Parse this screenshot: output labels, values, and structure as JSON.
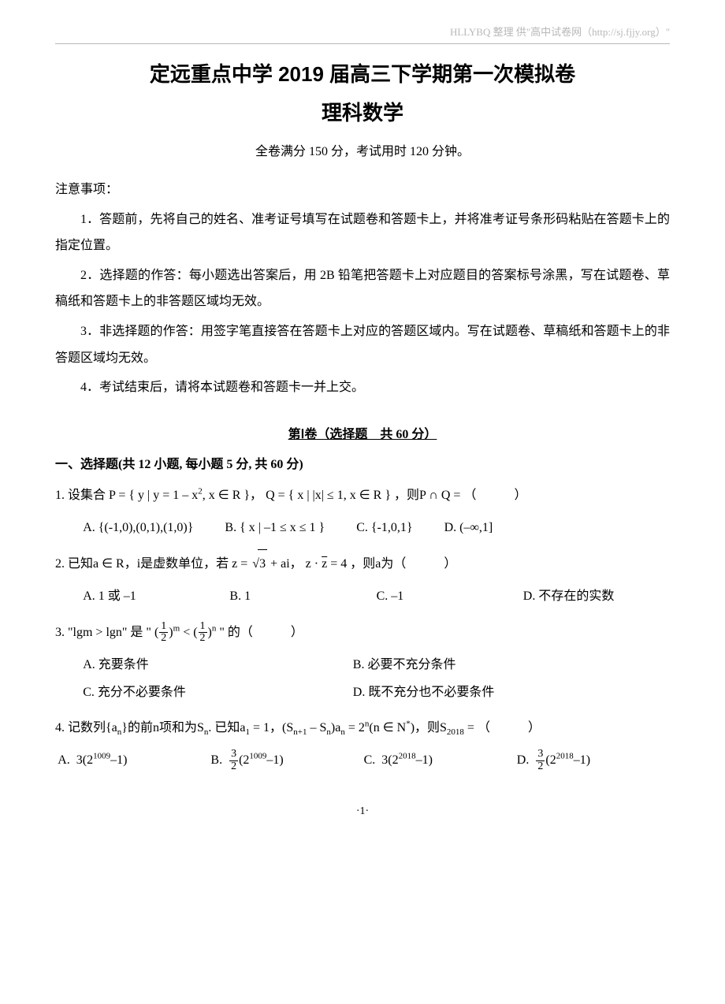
{
  "header": {
    "text": "HLLYBQ 整理    供\"高中试卷网（http://sj.fjjy.org）\""
  },
  "title": "定远重点中学 2019 届高三下学期第一次模拟卷",
  "subtitle": "理科数学",
  "info": "全卷满分 150 分，考试用时 120 分钟。",
  "notice_label": "注意事项：",
  "notices": [
    "1．答题前，先将自己的姓名、准考证号填写在试题卷和答题卡上，并将准考证号条形码粘贴在答题卡上的指定位置。",
    "2．选择题的作答：每小题选出答案后，用 2B 铅笔把答题卡上对应题目的答案标号涂黑，写在试题卷、草稿纸和答题卡上的非答题区域均无效。",
    "3．非选择题的作答：用签字笔直接答在答题卡上对应的答题区域内。写在试题卷、草稿纸和答题卡上的非答题区域均无效。",
    "4．考试结束后，请将本试题卷和答题卡一并上交。"
  ],
  "part1_head": "第Ⅰ卷（选择题　共 60 分）",
  "part1_sub": "一、选择题(共 12 小题, 每小题 5 分, 共 60 分)",
  "q1": {
    "stem_pre": "1. 设集合",
    "p_def": "P = { y | y = 1 – x²,  x ∈ R }",
    "q_def": "Q = { x | |x| ≤ 1,  x ∈ R }",
    "stem_post": "，则 P ∩ Q = （　　）",
    "a": "A.  {(-1,0),(0,1),(1,0)}",
    "b": "B.  { x | –1 ≤ x ≤ 1 }",
    "c": "C.  {-1,0,1}",
    "d": "D.  (–∞,1]"
  },
  "q2": {
    "stem": "2. 已知 a ∈ R，i 是虚数单位，若 ",
    "zexpr": "z = √3 + ai",
    "zzbar": "z · z̄ = 4",
    "tail": "，则 a 为（　　）",
    "a": "A.  1 或 –1",
    "b": "B.  1",
    "c": "C.  –1",
    "d": "D.  不存在的实数"
  },
  "q3": {
    "stem_pre": "3. \"lgm > lgn\" 是 \"",
    "ineq_l": "(½)^m",
    "ineq_r": "(½)^n",
    "stem_post": "\" 的（　　）",
    "a": "A.  充要条件",
    "b": "B.  必要不充分条件",
    "c": "C.  充分不必要条件",
    "d": "D.  既不充分也不必要条件"
  },
  "q4": {
    "stem": "4. 记数列{aₙ}的前 n 项和为 Sₙ.  已知 a₁ = 1，(Sₙ₊₁ – Sₙ)aₙ = 2ⁿ (n ∈ N*)，则 S₂₀₁₈ =（　　）",
    "a": "A.  3(2¹⁰⁰⁹ – 1)",
    "b_pre": "B.  ",
    "b_frac_n": "3",
    "b_frac_d": "2",
    "b_post": "(2¹⁰⁰⁹ – 1)",
    "c": "C.  3(2²⁰¹⁸ – 1)",
    "d_pre": "D.  ",
    "d_frac_n": "3",
    "d_frac_d": "2",
    "d_post": "(2²⁰¹⁸ – 1)"
  },
  "page_num": "·1·"
}
